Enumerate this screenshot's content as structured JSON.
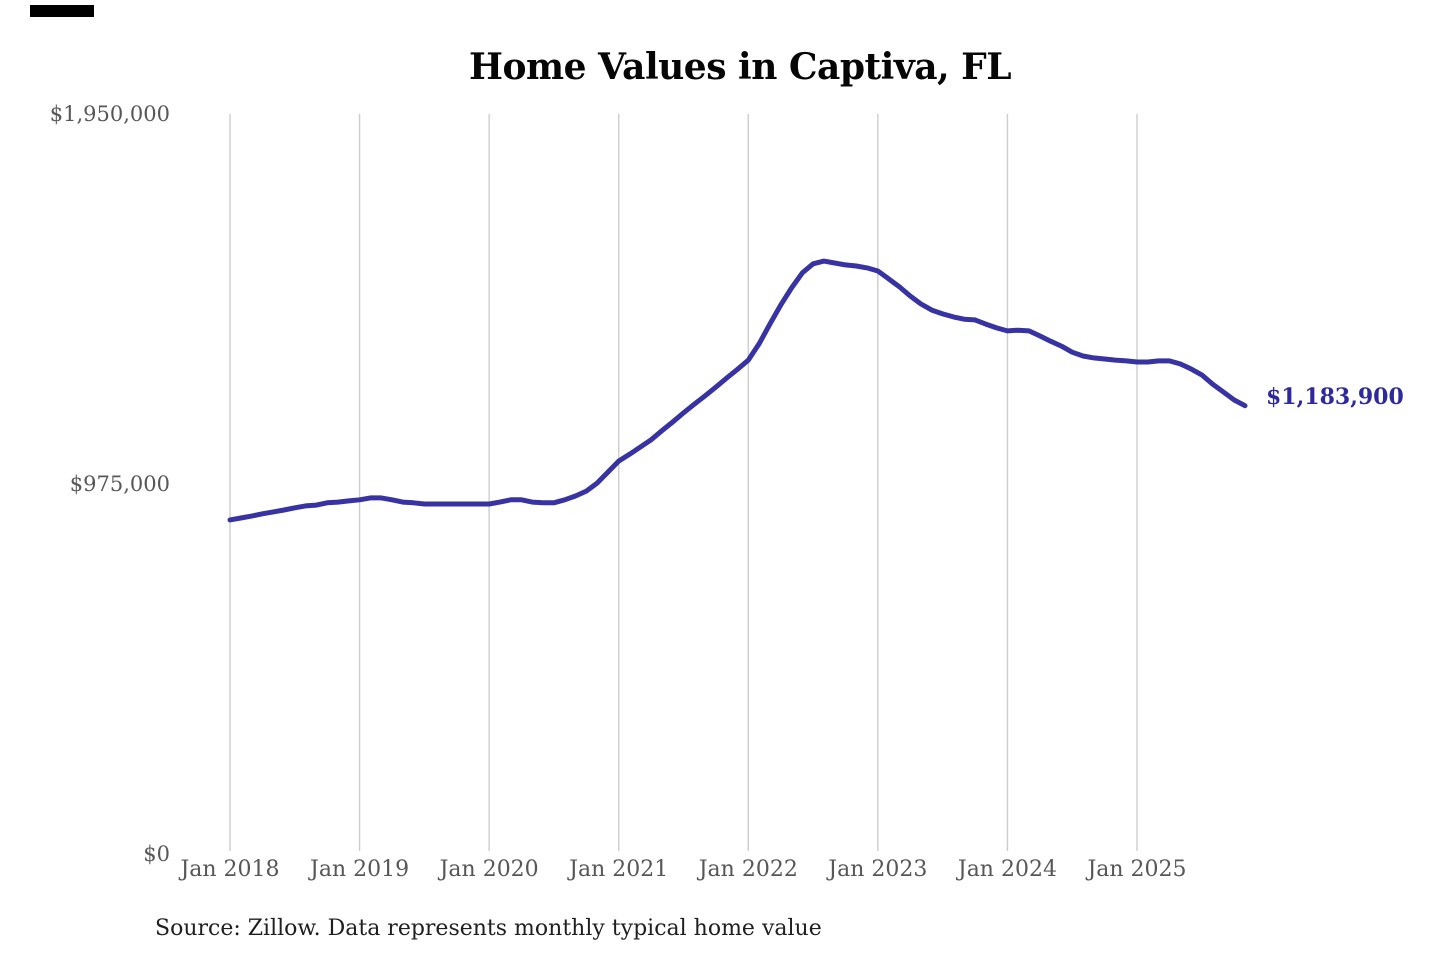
{
  "page": {
    "title": "Home Values in Captiva, FL",
    "source_note": "Source: Zillow. Data represents monthly typical home value"
  },
  "chart_data": {
    "type": "line",
    "title": "Home Values in Captiva, FL",
    "source": "Source: Zillow. Data represents monthly typical home value",
    "end_label": "$1,183,900",
    "latest_value": 1183900,
    "grid": "vertical-only",
    "legend": "none",
    "line_color": "#3733a3",
    "end_label_color": "#2e299c",
    "gridline_color": "#cdcdcd",
    "tick_label_color": "#575757",
    "ylim": [
      0,
      1950000
    ],
    "y_ticks": [
      {
        "label": "$1,950,000",
        "value": 1950000
      },
      {
        "label": "$975,000",
        "value": 975000
      },
      {
        "label": "$0",
        "value": 0
      }
    ],
    "x_ticks": [
      "Jan 2018",
      "Jan 2019",
      "Jan 2020",
      "Jan 2021",
      "Jan 2022",
      "Jan 2023",
      "Jan 2024",
      "Jan 2025"
    ],
    "series": [
      {
        "name": "Monthly typical home value",
        "x": [
          "2018-01",
          "2018-02",
          "2018-03",
          "2018-04",
          "2018-05",
          "2018-06",
          "2018-07",
          "2018-08",
          "2018-09",
          "2018-10",
          "2018-11",
          "2018-12",
          "2019-01",
          "2019-02",
          "2019-03",
          "2019-04",
          "2019-05",
          "2019-06",
          "2019-07",
          "2019-08",
          "2019-09",
          "2019-10",
          "2019-11",
          "2019-12",
          "2020-01",
          "2020-02",
          "2020-03",
          "2020-04",
          "2020-05",
          "2020-06",
          "2020-07",
          "2020-08",
          "2020-09",
          "2020-10",
          "2020-11",
          "2020-12",
          "2021-01",
          "2021-02",
          "2021-03",
          "2021-04",
          "2021-05",
          "2021-06",
          "2021-07",
          "2021-08",
          "2021-09",
          "2021-10",
          "2021-11",
          "2021-12",
          "2022-01",
          "2022-02",
          "2022-03",
          "2022-04",
          "2022-05",
          "2022-06",
          "2022-07",
          "2022-08",
          "2022-09",
          "2022-10",
          "2022-11",
          "2022-12",
          "2023-01",
          "2023-02",
          "2023-03",
          "2023-04",
          "2023-05",
          "2023-06",
          "2023-07",
          "2023-08",
          "2023-09",
          "2023-10",
          "2023-11",
          "2023-12",
          "2024-01",
          "2024-02",
          "2024-03",
          "2024-04",
          "2024-05",
          "2024-06",
          "2024-07",
          "2024-08",
          "2024-09",
          "2024-10",
          "2024-11",
          "2024-12",
          "2025-01",
          "2025-02",
          "2025-03",
          "2025-04",
          "2025-05",
          "2025-06",
          "2025-07",
          "2025-08",
          "2025-09",
          "2025-10",
          "2025-11"
        ],
        "values": [
          883000,
          888000,
          893000,
          899000,
          904000,
          909000,
          915000,
          920000,
          922000,
          928000,
          930000,
          933000,
          936000,
          941000,
          941000,
          936000,
          930000,
          928000,
          925000,
          925000,
          925000,
          925000,
          925000,
          925000,
          925000,
          930000,
          936000,
          936000,
          930000,
          928000,
          928000,
          936000,
          946000,
          959000,
          980000,
          1009000,
          1038000,
          1056000,
          1075000,
          1094000,
          1118000,
          1141000,
          1165000,
          1188000,
          1210000,
          1233000,
          1257000,
          1280000,
          1304000,
          1347000,
          1399000,
          1449000,
          1494000,
          1534000,
          1558000,
          1565000,
          1560000,
          1555000,
          1552000,
          1547000,
          1539000,
          1518000,
          1497000,
          1473000,
          1452000,
          1436000,
          1426000,
          1418000,
          1412000,
          1410000,
          1399000,
          1389000,
          1381000,
          1383000,
          1381000,
          1368000,
          1354000,
          1341000,
          1325000,
          1315000,
          1310000,
          1307000,
          1304000,
          1302000,
          1299000,
          1299000,
          1302000,
          1302000,
          1294000,
          1281000,
          1265000,
          1241000,
          1220000,
          1199000,
          1183900
        ]
      }
    ]
  }
}
